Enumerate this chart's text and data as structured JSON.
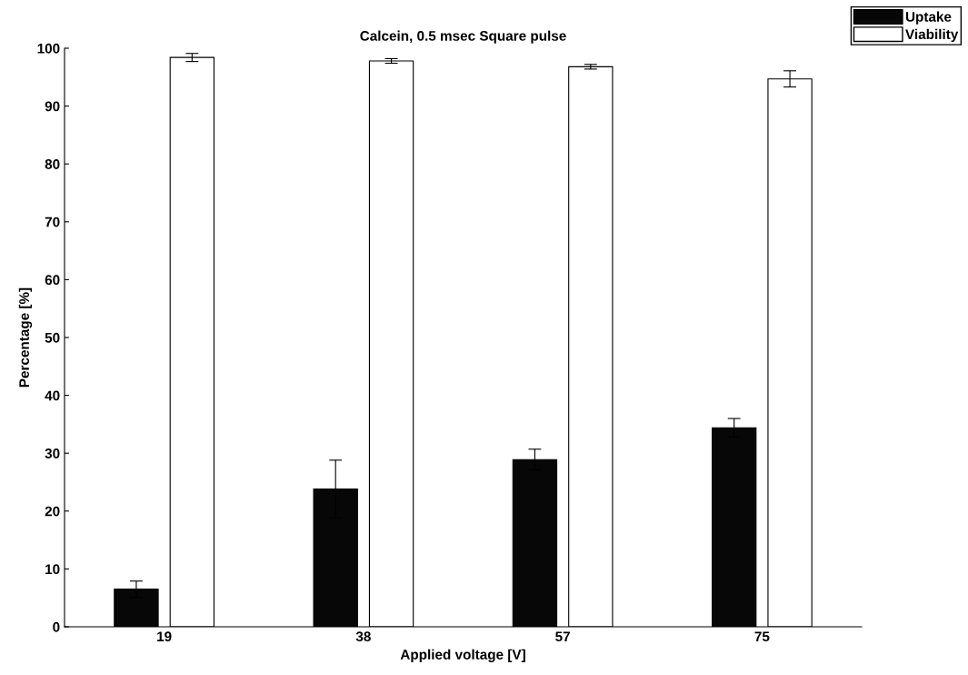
{
  "chart_data": {
    "type": "bar",
    "title": "Calcein, 0.5 msec Square pulse",
    "xlabel": "Applied voltage [V]",
    "ylabel": "Percentage [%]",
    "categories": [
      "19",
      "38",
      "57",
      "75"
    ],
    "series": [
      {
        "name": "Uptake",
        "color": "#070707",
        "values": [
          6.5,
          23.8,
          28.9,
          34.4
        ],
        "errors": [
          1.4,
          5.0,
          1.8,
          1.6
        ]
      },
      {
        "name": "Viability",
        "color": "#ffffff",
        "values": [
          98.4,
          97.8,
          96.8,
          94.7
        ],
        "errors": [
          0.7,
          0.4,
          0.4,
          1.4
        ]
      }
    ],
    "ylim": [
      0,
      100
    ],
    "yticks": [
      0,
      10,
      20,
      30,
      40,
      50,
      60,
      70,
      80,
      90,
      100
    ],
    "grid": false,
    "legend": "top right"
  }
}
